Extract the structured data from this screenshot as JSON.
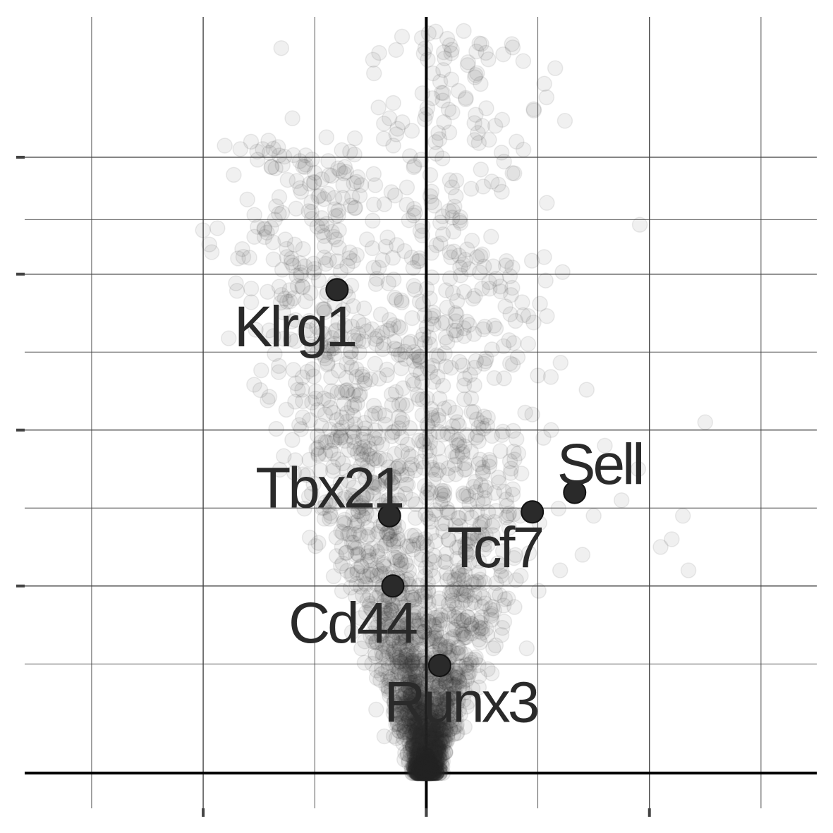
{
  "chart_data": {
    "type": "scatter",
    "title": "",
    "xlabel": "",
    "ylabel": "",
    "xlim": [
      -3.6,
      3.5
    ],
    "ylim": [
      0,
      9.7
    ],
    "x_major_ticks": [
      -2,
      0,
      2
    ],
    "x_minor_grid": [
      -3,
      -2,
      -1,
      0,
      1,
      2,
      3
    ],
    "y_major_ticks": [
      2.4,
      4.4,
      6.4,
      7.9
    ],
    "y_minor_grid": [
      1.4,
      2.4,
      3.4,
      4.4,
      5.4,
      6.4,
      7.1,
      7.9
    ],
    "grid": true,
    "background_point_color": "#2a2a2a",
    "background_point_opacity": 0.07,
    "highlight_color": "#2a2a2a",
    "background_shape": {
      "left_arm": [
        [
          0.0,
          0.0
        ],
        [
          -0.2,
          1.5
        ],
        [
          -0.35,
          2.5
        ],
        [
          -0.5,
          3.5
        ],
        [
          -0.65,
          4.5
        ],
        [
          -0.8,
          5.5
        ],
        [
          -0.9,
          6.5
        ],
        [
          -1.0,
          7.5
        ],
        [
          -1.1,
          8.2
        ]
      ],
      "right_arm": [
        [
          0.0,
          0.0
        ],
        [
          0.25,
          1.5
        ],
        [
          0.4,
          2.5
        ],
        [
          0.35,
          3.5
        ],
        [
          0.3,
          4.5
        ],
        [
          0.25,
          5.5
        ],
        [
          0.2,
          6.5
        ],
        [
          0.2,
          7.5
        ],
        [
          0.25,
          8.5
        ],
        [
          0.25,
          9.5
        ]
      ]
    },
    "background_outliers": [
      {
        "x": -1.3,
        "y": 9.3
      },
      {
        "x": -1.2,
        "y": 8.4
      },
      {
        "x": -0.33,
        "y": 8.4
      },
      {
        "x": 0.6,
        "y": 6.5
      },
      {
        "x": 0.8,
        "y": 5.8
      },
      {
        "x": 1.0,
        "y": 5.1
      },
      {
        "x": 0.95,
        "y": 4.6
      },
      {
        "x": 1.05,
        "y": 4.3
      },
      {
        "x": 0.75,
        "y": 4.0
      },
      {
        "x": 1.5,
        "y": 3.3
      },
      {
        "x": 1.75,
        "y": 3.5
      },
      {
        "x": 1.4,
        "y": 2.8
      },
      {
        "x": 2.3,
        "y": 3.3
      },
      {
        "x": 2.5,
        "y": 4.5
      },
      {
        "x": 1.6,
        "y": 4.2
      },
      {
        "x": 1.2,
        "y": 2.6
      },
      {
        "x": 2.35,
        "y": 2.6
      },
      {
        "x": 2.2,
        "y": 3.0
      },
      {
        "x": 0.9,
        "y": 1.6
      },
      {
        "x": 0.6,
        "y": 1.6
      },
      {
        "x": 0.5,
        "y": 1.8
      },
      {
        "x": -0.85,
        "y": 4.9
      },
      {
        "x": -0.6,
        "y": 5.4
      },
      {
        "x": -1.0,
        "y": 7.7
      },
      {
        "x": 2.1,
        "y": 2.9
      },
      {
        "x": 1.9,
        "y": 3.9
      },
      {
        "x": -1.05,
        "y": 5.8
      }
    ],
    "highlighted": [
      {
        "label": "Klrg1",
        "x": -0.8,
        "y": 6.2
      },
      {
        "label": "Sell",
        "x": 1.33,
        "y": 3.6
      },
      {
        "label": "Tcf7",
        "x": 0.95,
        "y": 3.35
      },
      {
        "label": "Tbx21",
        "x": -0.33,
        "y": 3.3
      },
      {
        "label": "Cd44",
        "x": -0.3,
        "y": 2.4
      },
      {
        "label": "Runx3",
        "x": 0.12,
        "y": 1.38
      }
    ]
  }
}
